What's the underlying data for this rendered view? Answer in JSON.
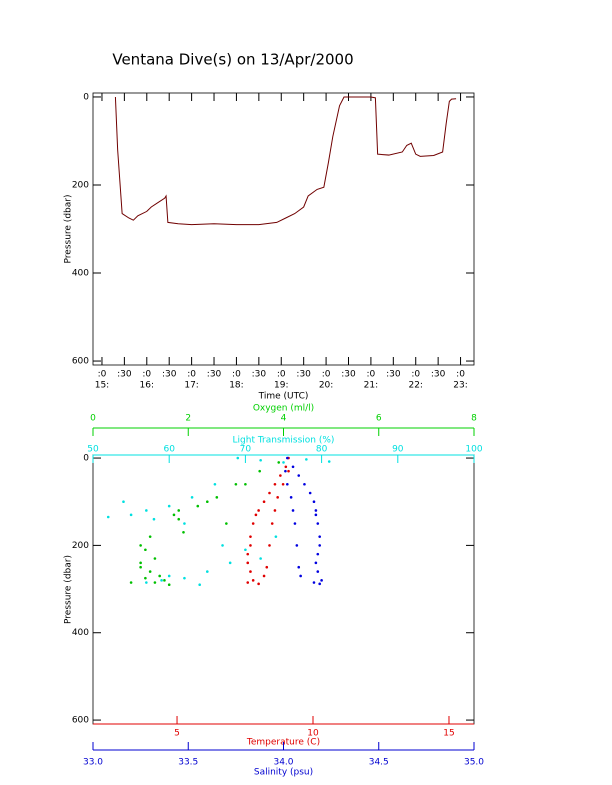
{
  "chart_data": [
    {
      "type": "line",
      "title": "Ventana Dive(s) on 13/Apr/2000",
      "xlabel": "Time (UTC)",
      "ylabel": "Pressure (dbar)",
      "xlim": [
        14.8,
        23.3
      ],
      "ylim": [
        -9,
        609
      ],
      "yreverse": true,
      "yticks": [
        0,
        200,
        400,
        600
      ],
      "xticks": [
        {
          "value": 15,
          "label": ":0"
        },
        {
          "value": 15.5,
          "label": ":30"
        },
        {
          "value": 16,
          "label": ":0"
        },
        {
          "value": 16.5,
          "label": ":30"
        },
        {
          "value": 17,
          "label": ":0"
        },
        {
          "value": 17.5,
          "label": ":30"
        },
        {
          "value": 18,
          "label": ":0"
        },
        {
          "value": 18.5,
          "label": ":30"
        },
        {
          "value": 19,
          "label": ":0"
        },
        {
          "value": 19.5,
          "label": ":30"
        },
        {
          "value": 20,
          "label": ":0"
        },
        {
          "value": 20.5,
          "label": ":30"
        },
        {
          "value": 21,
          "label": ":0"
        },
        {
          "value": 21.5,
          "label": ":30"
        },
        {
          "value": 22,
          "label": ":0"
        },
        {
          "value": 22.5,
          "label": ":30"
        },
        {
          "value": 23,
          "label": ":0"
        }
      ],
      "x_hour_labels": [
        {
          "value": 15,
          "label": "15:"
        },
        {
          "value": 16,
          "label": "16:"
        },
        {
          "value": 17,
          "label": "17:"
        },
        {
          "value": 18,
          "label": "18:"
        },
        {
          "value": 19,
          "label": "19:"
        },
        {
          "value": 20,
          "label": "20:"
        },
        {
          "value": 21,
          "label": "21:"
        },
        {
          "value": 22,
          "label": "22:"
        },
        {
          "value": 23,
          "label": "23:"
        }
      ],
      "x": [
        15.3,
        15.35,
        15.45,
        15.6,
        15.7,
        15.8,
        16.0,
        16.1,
        16.25,
        16.4,
        16.43,
        16.47,
        16.7,
        17.0,
        17.5,
        18.0,
        18.5,
        18.9,
        19.1,
        19.3,
        19.5,
        19.6,
        19.8,
        19.95,
        20.05,
        20.15,
        20.3,
        20.4,
        21.0,
        21.1,
        21.15,
        21.4,
        21.7,
        21.8,
        21.9,
        22.0,
        22.1,
        22.4,
        22.6,
        22.68,
        22.75,
        22.8,
        22.9
      ],
      "series": [
        {
          "color": "#700000",
          "values": [
            0,
            120,
            265,
            275,
            280,
            270,
            260,
            250,
            240,
            230,
            225,
            285,
            288,
            290,
            288,
            290,
            290,
            285,
            275,
            265,
            250,
            225,
            210,
            205,
            150,
            90,
            20,
            0,
            0,
            2,
            130,
            132,
            125,
            110,
            105,
            130,
            135,
            133,
            125,
            60,
            10,
            5,
            4
          ]
        }
      ]
    },
    {
      "type": "scatter",
      "ylabel": "Pressure (dbar)",
      "ylim": [
        -7,
        609
      ],
      "yreverse": true,
      "yticks": [
        0,
        200,
        400,
        600
      ],
      "xaxes": [
        {
          "label": "Oxygen (ml/l)",
          "color": "#00d000",
          "position": "top-outer",
          "xlim": [
            0,
            8
          ],
          "xticks": [
            0,
            2,
            4,
            6,
            8
          ]
        },
        {
          "label": "Light Transmission (%)",
          "color": "#00e0e0",
          "position": "top",
          "xlim": [
            50,
            100
          ],
          "xticks": [
            50,
            60,
            70,
            80,
            90,
            100
          ]
        },
        {
          "label": "Temperature (C)",
          "color": "#e00000",
          "position": "bottom",
          "xlim": [
            1.91,
            15.92
          ],
          "xticks": [
            5,
            10,
            15
          ]
        },
        {
          "label": "Salinity (psu)",
          "color": "#0000d0",
          "position": "bottom-outer",
          "xlim": [
            33,
            35
          ],
          "xticks": [
            {
              "value": 33,
              "label": "33.0"
            },
            {
              "value": 33.5,
              "label": "33.5"
            },
            {
              "value": 34,
              "label": "34.0"
            },
            {
              "value": 34.5,
              "label": "34.5"
            },
            {
              "value": 35,
              "label": "35.0"
            }
          ]
        }
      ],
      "series": [
        {
          "axis": 2,
          "color": "#e00000",
          "x": [
            9.1,
            9.0,
            8.8,
            8.6,
            8.4,
            8.2,
            8.0,
            7.9,
            7.8,
            7.7,
            7.7,
            7.6,
            7.6,
            7.7,
            7.8,
            7.6,
            8.0,
            9.1,
            8.9,
            8.7,
            8.6,
            8.5,
            8.4,
            8.3,
            8.2
          ],
          "values": [
            0,
            20,
            40,
            60,
            80,
            100,
            120,
            130,
            150,
            180,
            200,
            220,
            240,
            260,
            280,
            285,
            288,
            30,
            60,
            90,
            120,
            150,
            200,
            250,
            270
          ]
        },
        {
          "axis": 3,
          "color": "#0000e0",
          "x": [
            34.02,
            34.05,
            34.08,
            34.11,
            34.14,
            34.16,
            34.17,
            34.17,
            34.18,
            34.19,
            34.19,
            34.18,
            34.17,
            34.18,
            34.2,
            34.16,
            34.19,
            34.01,
            34.02,
            34.04,
            34.05,
            34.06,
            34.07,
            34.08,
            34.09
          ],
          "values": [
            0,
            20,
            40,
            60,
            80,
            100,
            120,
            130,
            150,
            180,
            200,
            220,
            240,
            260,
            280,
            285,
            288,
            30,
            60,
            90,
            120,
            150,
            200,
            250,
            270
          ]
        },
        {
          "axis": 0,
          "color": "#00c000",
          "x": [
            3.9,
            3.5,
            3.0,
            2.6,
            2.2,
            1.8,
            1.7,
            1.8,
            1.2,
            1.0,
            1.1,
            1.3,
            1.0,
            1.2,
            1.4,
            1.1,
            1.5,
            1.3,
            2.4,
            2.8,
            3.2,
            0.8,
            1.6,
            1.9,
            1.0
          ],
          "values": [
            10,
            30,
            60,
            90,
            110,
            120,
            130,
            140,
            180,
            200,
            210,
            230,
            250,
            260,
            270,
            275,
            280,
            285,
            100,
            150,
            60,
            285,
            290,
            170,
            240
          ]
        },
        {
          "axis": 1,
          "color": "#00e0e0",
          "x": [
            69,
            72,
            75,
            78,
            81,
            66,
            63,
            60,
            57,
            55,
            52,
            58,
            62,
            67,
            70,
            72,
            68,
            65,
            62,
            59,
            57,
            64,
            60,
            54,
            74
          ],
          "values": [
            0,
            5,
            10,
            3,
            8,
            60,
            90,
            110,
            120,
            130,
            135,
            140,
            150,
            200,
            210,
            230,
            240,
            260,
            275,
            280,
            285,
            290,
            270,
            100,
            180
          ]
        }
      ]
    }
  ]
}
